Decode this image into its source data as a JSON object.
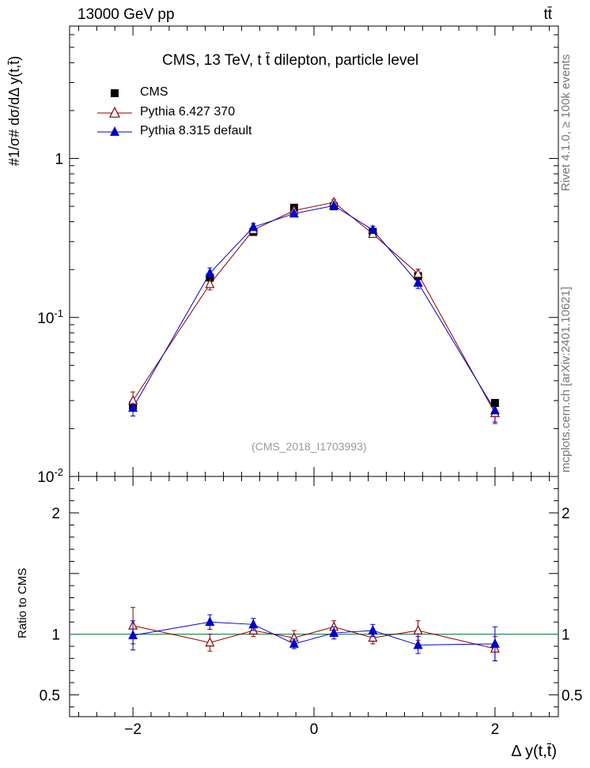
{
  "chart_data": {
    "type": "line",
    "header": {
      "energy_label": "13000 GeV pp",
      "process_label": "tt̄"
    },
    "title": "CMS, 13 TeV, t t̄ dilepton, particle level",
    "watermark": "(CMS_2018_I1703993)",
    "side_text": {
      "rivet": "Rivet 4.1.0, ≥ 100k events",
      "mcplots": "mcplots.cern.ch [arXiv:2401.10621]"
    },
    "xlabel": "Δ y(t,t̄)",
    "ylabel": "#1/σ# dσ/dΔ y(t,t̄)",
    "ylabel_ratio": "Ratio to CMS",
    "xlim": [
      -2.7,
      2.7
    ],
    "ylim": [
      0.01,
      6.8
    ],
    "ratio_ylim": [
      0.32,
      2.3
    ],
    "xticks": [
      -2,
      0,
      2
    ],
    "xtick_labels": [
      "−2",
      "0",
      "2"
    ],
    "yticks_main": [
      {
        "value": 1,
        "label": "1"
      },
      {
        "value": 0.1,
        "label": "10^-1"
      },
      {
        "value": 0.01,
        "label": "10^-2"
      }
    ],
    "yticks_ratio": [
      {
        "value": 2,
        "label": "2"
      },
      {
        "value": 1,
        "label": "1"
      },
      {
        "value": 0.5,
        "label": "0.5"
      }
    ],
    "x": [
      -2.0,
      -1.15,
      -0.67,
      -0.22,
      0.22,
      0.65,
      1.15,
      2.0
    ],
    "series": [
      {
        "name": "CMS",
        "color": "#000000",
        "marker": "square",
        "values": [
          0.028,
          0.178,
          0.345,
          0.49,
          0.5,
          0.345,
          0.182,
          0.029
        ]
      },
      {
        "name": "Pythia 6.427 370",
        "color": "#8b0000",
        "marker": "open-triangle",
        "values": [
          0.03,
          0.162,
          0.355,
          0.47,
          0.53,
          0.335,
          0.188,
          0.025
        ],
        "errors": [
          0.004,
          0.013,
          0.015,
          0.02,
          0.02,
          0.015,
          0.013,
          0.0035
        ],
        "ratio": [
          1.07,
          0.93,
          1.03,
          0.97,
          1.06,
          0.97,
          1.03,
          0.88
        ],
        "ratio_errors": [
          0.15,
          0.07,
          0.05,
          0.06,
          0.05,
          0.05,
          0.08,
          0.1
        ]
      },
      {
        "name": "Pythia 8.315 default",
        "color": "#0000cc",
        "marker": "triangle",
        "values": [
          0.027,
          0.19,
          0.37,
          0.45,
          0.505,
          0.355,
          0.165,
          0.026
        ],
        "errors": [
          0.003,
          0.015,
          0.02,
          0.02,
          0.02,
          0.02,
          0.013,
          0.004
        ],
        "ratio": [
          0.99,
          1.1,
          1.08,
          0.92,
          1.01,
          1.03,
          0.91,
          0.92
        ],
        "ratio_errors": [
          0.12,
          0.06,
          0.05,
          0.04,
          0.05,
          0.05,
          0.07,
          0.14
        ]
      }
    ]
  }
}
